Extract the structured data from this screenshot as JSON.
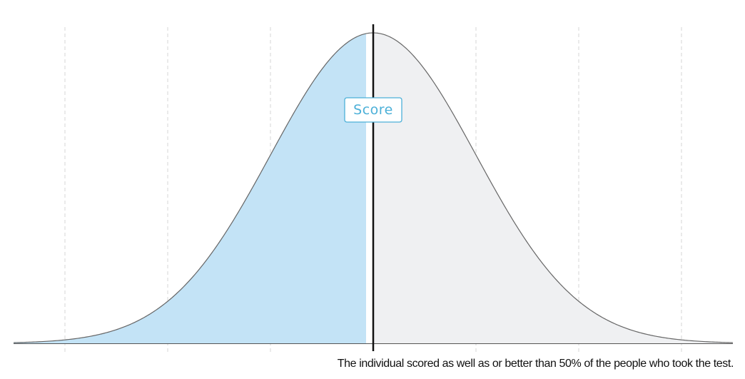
{
  "chart_data": {
    "type": "area",
    "distribution": "normal",
    "mean": 0,
    "sd": 1,
    "xlim": [
      -3.5,
      3.5
    ],
    "gridlines_x": [
      -3,
      -2,
      -1,
      1,
      2,
      3
    ],
    "grid": "vertical dashed",
    "score_z": 0,
    "score_label": "Score",
    "percentile": 50,
    "shaded_below_color": "#c3e3f6",
    "shaded_above_color": "#eff0f2",
    "curve_color": "#666666",
    "score_line_color": "#111111",
    "label_color": "#4cb0d8"
  },
  "caption": "The individual scored as well as or better than 50% of the people who took the test."
}
